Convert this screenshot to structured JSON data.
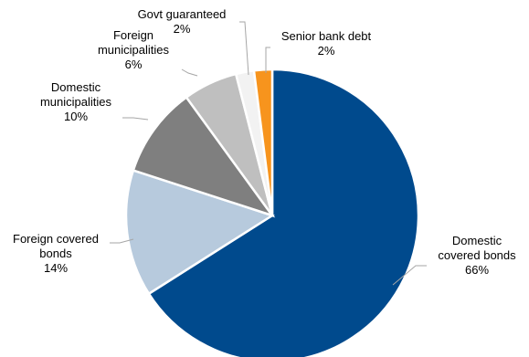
{
  "chart_data": {
    "type": "pie",
    "title": "",
    "slices": [
      {
        "label": "Domestic covered bonds",
        "lines": [
          "Domestic",
          "covered bonds"
        ],
        "pct_text": "66%",
        "value": 66,
        "color": "#004a8d"
      },
      {
        "label": "Foreign covered bonds",
        "lines": [
          "Foreign covered",
          "bonds"
        ],
        "pct_text": "14%",
        "value": 14,
        "color": "#b7cadd"
      },
      {
        "label": "Domestic municipalities",
        "lines": [
          "Domestic",
          "municipalities"
        ],
        "pct_text": "10%",
        "value": 10,
        "color": "#7f7f7f"
      },
      {
        "label": "Foreign municipalities",
        "lines": [
          "Foreign",
          "municipalities"
        ],
        "pct_text": "6%",
        "value": 6,
        "color": "#bfbfbf"
      },
      {
        "label": "Govt guaranteed",
        "lines": [
          "Govt guaranteed"
        ],
        "pct_text": "2%",
        "value": 2,
        "color": "#f2f2f2"
      },
      {
        "label": "Senior bank debt",
        "lines": [
          "Senior bank debt"
        ],
        "pct_text": "2%",
        "value": 2,
        "color": "#f7941d"
      }
    ],
    "legend": "none",
    "start": "top, clockwise"
  }
}
